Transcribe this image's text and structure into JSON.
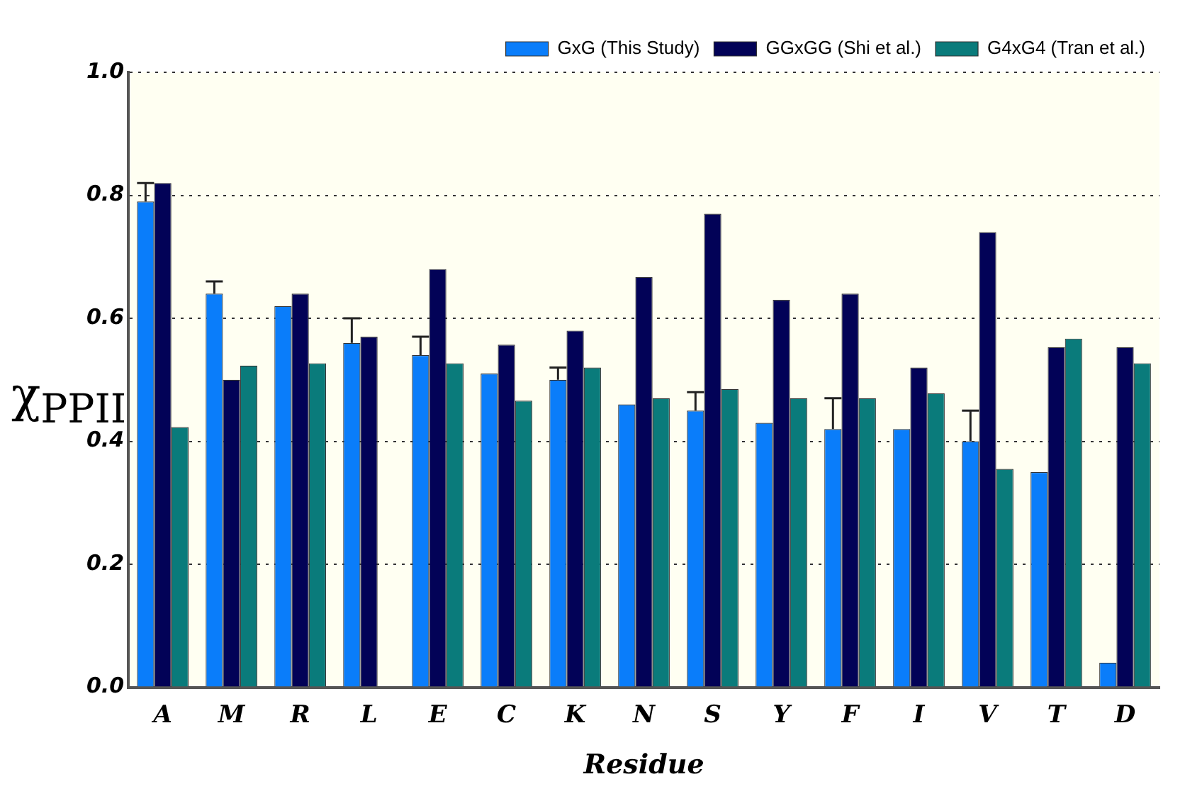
{
  "chart_data": {
    "type": "bar",
    "xlabel": "Residue",
    "ylabel": "χ$_{PPII}$",
    "categories": [
      "A",
      "M",
      "R",
      "L",
      "E",
      "C",
      "K",
      "N",
      "S",
      "Y",
      "F",
      "I",
      "V",
      "T",
      "D"
    ],
    "series": [
      {
        "name": "GxG (This Study)",
        "color": "#0a7dfa",
        "values": [
          0.79,
          0.64,
          0.62,
          0.56,
          0.54,
          0.51,
          0.5,
          0.46,
          0.45,
          0.43,
          0.42,
          0.42,
          0.4,
          0.35,
          0.04
        ],
        "errors": [
          [
            0.79,
            0.82
          ],
          [
            0.64,
            0.66
          ],
          null,
          [
            0.56,
            0.6
          ],
          [
            0.54,
            0.57
          ],
          null,
          [
            0.5,
            0.52
          ],
          null,
          [
            0.45,
            0.48
          ],
          null,
          [
            0.42,
            0.47
          ],
          null,
          [
            0.4,
            0.45
          ],
          null,
          null
        ]
      },
      {
        "name": "GGxGG (Shi et al.)",
        "color": "#020257",
        "values": [
          0.82,
          0.5,
          0.64,
          0.57,
          0.68,
          0.557,
          0.58,
          0.667,
          0.77,
          0.63,
          0.64,
          0.52,
          0.74,
          0.553,
          0.553
        ]
      },
      {
        "name": "G4xG4 (Tran et al.)",
        "color": "#0a7b7b",
        "values": [
          0.423,
          0.523,
          0.527,
          null,
          0.527,
          0.466,
          0.52,
          0.47,
          0.485,
          0.47,
          0.47,
          0.478,
          0.355,
          0.567,
          0.527
        ]
      }
    ],
    "ylim": [
      0,
      1
    ],
    "yticks": [
      {
        "value": 0,
        "label": "0.0"
      },
      {
        "value": 0.2,
        "label": "0.2"
      },
      {
        "value": 0.4,
        "label": "0.4"
      },
      {
        "value": 0.6,
        "label": "0.6"
      },
      {
        "value": 0.8,
        "label": "0.8"
      },
      {
        "value": 1,
        "label": "1.0"
      }
    ],
    "grid": "y",
    "legend": "top right"
  }
}
